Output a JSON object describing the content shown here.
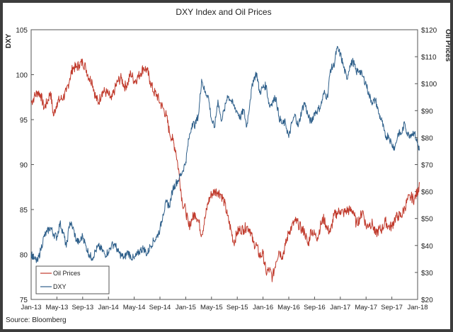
{
  "chart_data": {
    "type": "line",
    "title": "DXY Index  and Oil Prices",
    "left_axis_label": "DXY",
    "right_axis_label": "Oil Prices",
    "left_ylim": [
      75,
      105
    ],
    "left_ticks": [
      "75",
      "80",
      "85",
      "90",
      "95",
      "100",
      "105"
    ],
    "right_ylim": [
      20,
      120
    ],
    "right_ticks": [
      "$20",
      "$30",
      "$40",
      "$50",
      "$60",
      "$70",
      "$80",
      "$90",
      "$100",
      "$110",
      "$120"
    ],
    "x_ticks": [
      "Jan-13",
      "May-13",
      "Sep-13",
      "Jan-14",
      "May-14",
      "Sep-14",
      "Jan-15",
      "May-15",
      "Sep-15",
      "Jan-16",
      "May-16",
      "Sep-16",
      "Jan-17",
      "May-17",
      "Sep-17",
      "Jan-18"
    ],
    "x_start": "2013-01",
    "x_end": "2018-01",
    "legend_position": "bottom-left",
    "grid": false,
    "source": "Source: Bloomberg",
    "series": [
      {
        "name": "Oil Prices",
        "axis": "right",
        "color": "#c0392b",
        "points": [
          [
            "2013-01-01",
            93
          ],
          [
            "2013-01-15",
            95
          ],
          [
            "2013-02-01",
            97
          ],
          [
            "2013-02-15",
            96
          ],
          [
            "2013-03-01",
            91
          ],
          [
            "2013-03-15",
            93
          ],
          [
            "2013-04-01",
            97
          ],
          [
            "2013-04-15",
            88
          ],
          [
            "2013-05-01",
            93
          ],
          [
            "2013-05-15",
            94
          ],
          [
            "2013-06-01",
            95
          ],
          [
            "2013-06-15",
            97
          ],
          [
            "2013-07-01",
            102
          ],
          [
            "2013-07-15",
            106
          ],
          [
            "2013-08-01",
            106
          ],
          [
            "2013-08-15",
            107
          ],
          [
            "2013-09-01",
            108
          ],
          [
            "2013-09-15",
            106
          ],
          [
            "2013-10-01",
            102
          ],
          [
            "2013-10-15",
            101
          ],
          [
            "2013-11-01",
            95
          ],
          [
            "2013-11-15",
            93
          ],
          [
            "2013-12-01",
            97
          ],
          [
            "2013-12-15",
            97
          ],
          [
            "2014-01-01",
            96
          ],
          [
            "2014-01-15",
            94
          ],
          [
            "2014-02-01",
            98
          ],
          [
            "2014-02-15",
            101
          ],
          [
            "2014-03-01",
            102
          ],
          [
            "2014-03-15",
            99
          ],
          [
            "2014-04-01",
            100
          ],
          [
            "2014-04-15",
            104
          ],
          [
            "2014-05-01",
            101
          ],
          [
            "2014-05-15",
            102
          ],
          [
            "2014-06-01",
            104
          ],
          [
            "2014-06-15",
            106
          ],
          [
            "2014-07-01",
            105
          ],
          [
            "2014-07-15",
            101
          ],
          [
            "2014-08-01",
            97
          ],
          [
            "2014-08-15",
            96
          ],
          [
            "2014-09-01",
            93
          ],
          [
            "2014-09-15",
            91
          ],
          [
            "2014-10-01",
            88
          ],
          [
            "2014-10-15",
            82
          ],
          [
            "2014-11-01",
            79
          ],
          [
            "2014-11-15",
            75
          ],
          [
            "2014-12-01",
            66
          ],
          [
            "2014-12-15",
            56
          ],
          [
            "2015-01-01",
            53
          ],
          [
            "2015-01-15",
            47
          ],
          [
            "2015-02-01",
            50
          ],
          [
            "2015-02-15",
            52
          ],
          [
            "2015-03-01",
            49
          ],
          [
            "2015-03-15",
            44
          ],
          [
            "2015-04-01",
            50
          ],
          [
            "2015-04-15",
            56
          ],
          [
            "2015-05-01",
            59
          ],
          [
            "2015-05-15",
            60
          ],
          [
            "2015-06-01",
            60
          ],
          [
            "2015-06-15",
            59
          ],
          [
            "2015-07-01",
            56
          ],
          [
            "2015-07-15",
            51
          ],
          [
            "2015-08-01",
            46
          ],
          [
            "2015-08-15",
            41
          ],
          [
            "2015-09-01",
            45
          ],
          [
            "2015-09-15",
            46
          ],
          [
            "2015-10-01",
            46
          ],
          [
            "2015-10-15",
            47
          ],
          [
            "2015-11-01",
            46
          ],
          [
            "2015-11-15",
            41
          ],
          [
            "2015-12-01",
            40
          ],
          [
            "2015-12-15",
            36
          ],
          [
            "2016-01-01",
            37
          ],
          [
            "2016-01-15",
            30
          ],
          [
            "2016-02-01",
            31
          ],
          [
            "2016-02-15",
            28
          ],
          [
            "2016-03-01",
            34
          ],
          [
            "2016-03-15",
            38
          ],
          [
            "2016-04-01",
            36
          ],
          [
            "2016-04-15",
            40
          ],
          [
            "2016-05-01",
            45
          ],
          [
            "2016-05-15",
            47
          ],
          [
            "2016-06-01",
            49
          ],
          [
            "2016-06-15",
            48
          ],
          [
            "2016-07-01",
            46
          ],
          [
            "2016-07-15",
            45
          ],
          [
            "2016-08-01",
            40
          ],
          [
            "2016-08-15",
            46
          ],
          [
            "2016-09-01",
            44
          ],
          [
            "2016-09-15",
            43
          ],
          [
            "2016-10-01",
            48
          ],
          [
            "2016-10-15",
            50
          ],
          [
            "2016-11-01",
            46
          ],
          [
            "2016-11-15",
            45
          ],
          [
            "2016-12-01",
            51
          ],
          [
            "2016-12-15",
            52
          ],
          [
            "2017-01-01",
            53
          ],
          [
            "2017-01-15",
            52
          ],
          [
            "2017-02-01",
            53
          ],
          [
            "2017-02-15",
            53
          ],
          [
            "2017-03-01",
            53
          ],
          [
            "2017-03-15",
            48
          ],
          [
            "2017-04-01",
            50
          ],
          [
            "2017-04-15",
            53
          ],
          [
            "2017-05-01",
            47
          ],
          [
            "2017-05-15",
            48
          ],
          [
            "2017-06-01",
            48
          ],
          [
            "2017-06-15",
            44
          ],
          [
            "2017-07-01",
            46
          ],
          [
            "2017-07-15",
            46
          ],
          [
            "2017-08-01",
            49
          ],
          [
            "2017-08-15",
            47
          ],
          [
            "2017-09-01",
            47
          ],
          [
            "2017-09-15",
            50
          ],
          [
            "2017-10-01",
            51
          ],
          [
            "2017-10-15",
            51
          ],
          [
            "2017-11-01",
            54
          ],
          [
            "2017-11-15",
            57
          ],
          [
            "2017-12-01",
            58
          ],
          [
            "2017-12-15",
            57
          ],
          [
            "2018-01-01",
            60
          ],
          [
            "2018-01-10",
            63
          ]
        ]
      },
      {
        "name": "DXY",
        "axis": "left",
        "color": "#2e5f8a",
        "points": [
          [
            "2013-01-01",
            80.1
          ],
          [
            "2013-01-15",
            79.5
          ],
          [
            "2013-02-01",
            79.2
          ],
          [
            "2013-02-15",
            80.5
          ],
          [
            "2013-03-01",
            82.0
          ],
          [
            "2013-03-15",
            82.5
          ],
          [
            "2013-04-01",
            83.0
          ],
          [
            "2013-04-15",
            82.3
          ],
          [
            "2013-05-01",
            81.9
          ],
          [
            "2013-05-15",
            83.5
          ],
          [
            "2013-06-01",
            82.4
          ],
          [
            "2013-06-15",
            80.8
          ],
          [
            "2013-07-01",
            83.6
          ],
          [
            "2013-07-15",
            83.0
          ],
          [
            "2013-08-01",
            81.6
          ],
          [
            "2013-08-15",
            81.3
          ],
          [
            "2013-09-01",
            82.1
          ],
          [
            "2013-09-15",
            81.0
          ],
          [
            "2013-10-01",
            80.0
          ],
          [
            "2013-10-15",
            79.6
          ],
          [
            "2013-11-01",
            80.4
          ],
          [
            "2013-11-15",
            80.9
          ],
          [
            "2013-12-01",
            80.5
          ],
          [
            "2013-12-15",
            80.0
          ],
          [
            "2014-01-01",
            80.3
          ],
          [
            "2014-01-15",
            81.0
          ],
          [
            "2014-02-01",
            81.2
          ],
          [
            "2014-02-15",
            80.3
          ],
          [
            "2014-03-01",
            79.9
          ],
          [
            "2014-03-15",
            79.6
          ],
          [
            "2014-04-01",
            80.3
          ],
          [
            "2014-04-15",
            79.8
          ],
          [
            "2014-05-01",
            79.5
          ],
          [
            "2014-05-15",
            80.0
          ],
          [
            "2014-06-01",
            80.5
          ],
          [
            "2014-06-15",
            80.7
          ],
          [
            "2014-07-01",
            80.0
          ],
          [
            "2014-07-15",
            80.9
          ],
          [
            "2014-08-01",
            81.5
          ],
          [
            "2014-08-15",
            81.9
          ],
          [
            "2014-09-01",
            82.8
          ],
          [
            "2014-09-15",
            84.5
          ],
          [
            "2014-10-01",
            85.8
          ],
          [
            "2014-10-15",
            85.4
          ],
          [
            "2014-11-01",
            87.3
          ],
          [
            "2014-11-15",
            87.9
          ],
          [
            "2014-12-01",
            88.5
          ],
          [
            "2014-12-15",
            89.2
          ],
          [
            "2015-01-01",
            90.3
          ],
          [
            "2015-01-15",
            92.8
          ],
          [
            "2015-02-01",
            94.6
          ],
          [
            "2015-02-15",
            94.4
          ],
          [
            "2015-03-01",
            95.6
          ],
          [
            "2015-03-15",
            99.5
          ],
          [
            "2015-04-01",
            98.0
          ],
          [
            "2015-04-15",
            97.7
          ],
          [
            "2015-05-01",
            95.0
          ],
          [
            "2015-05-15",
            94.1
          ],
          [
            "2015-06-01",
            97.2
          ],
          [
            "2015-06-15",
            95.0
          ],
          [
            "2015-07-01",
            96.0
          ],
          [
            "2015-07-15",
            97.7
          ],
          [
            "2015-08-01",
            97.2
          ],
          [
            "2015-08-15",
            96.5
          ],
          [
            "2015-09-01",
            95.9
          ],
          [
            "2015-09-15",
            95.2
          ],
          [
            "2015-10-01",
            96.1
          ],
          [
            "2015-10-15",
            94.2
          ],
          [
            "2015-11-01",
            97.2
          ],
          [
            "2015-11-15",
            99.4
          ],
          [
            "2015-12-01",
            100.2
          ],
          [
            "2015-12-15",
            98.0
          ],
          [
            "2016-01-01",
            98.6
          ],
          [
            "2016-01-15",
            98.8
          ],
          [
            "2016-02-01",
            96.5
          ],
          [
            "2016-02-15",
            97.0
          ],
          [
            "2016-03-01",
            97.5
          ],
          [
            "2016-03-15",
            95.3
          ],
          [
            "2016-04-01",
            94.5
          ],
          [
            "2016-04-15",
            94.7
          ],
          [
            "2016-05-01",
            93.0
          ],
          [
            "2016-05-15",
            94.6
          ],
          [
            "2016-06-01",
            95.5
          ],
          [
            "2016-06-15",
            94.2
          ],
          [
            "2016-07-01",
            96.0
          ],
          [
            "2016-07-15",
            96.9
          ],
          [
            "2016-08-01",
            95.4
          ],
          [
            "2016-08-15",
            94.7
          ],
          [
            "2016-09-01",
            95.8
          ],
          [
            "2016-09-15",
            96.0
          ],
          [
            "2016-10-01",
            96.6
          ],
          [
            "2016-10-15",
            98.0
          ],
          [
            "2016-11-01",
            97.5
          ],
          [
            "2016-11-15",
            100.6
          ],
          [
            "2016-12-01",
            101.0
          ],
          [
            "2016-12-15",
            102.9
          ],
          [
            "2017-01-01",
            102.3
          ],
          [
            "2017-01-15",
            101.0
          ],
          [
            "2017-02-01",
            99.5
          ],
          [
            "2017-02-15",
            101.0
          ],
          [
            "2017-03-01",
            101.5
          ],
          [
            "2017-03-15",
            100.3
          ],
          [
            "2017-04-01",
            100.5
          ],
          [
            "2017-04-15",
            99.8
          ],
          [
            "2017-05-01",
            99.0
          ],
          [
            "2017-05-15",
            97.7
          ],
          [
            "2017-06-01",
            96.9
          ],
          [
            "2017-06-15",
            97.2
          ],
          [
            "2017-07-01",
            95.6
          ],
          [
            "2017-07-15",
            94.8
          ],
          [
            "2017-08-01",
            93.0
          ],
          [
            "2017-08-15",
            93.3
          ],
          [
            "2017-09-01",
            92.2
          ],
          [
            "2017-09-15",
            91.9
          ],
          [
            "2017-10-01",
            93.5
          ],
          [
            "2017-10-15",
            93.4
          ],
          [
            "2017-11-01",
            94.6
          ],
          [
            "2017-11-15",
            93.3
          ],
          [
            "2017-12-01",
            93.4
          ],
          [
            "2017-12-15",
            93.6
          ],
          [
            "2018-01-01",
            92.3
          ],
          [
            "2018-01-10",
            91.6
          ]
        ]
      }
    ]
  }
}
